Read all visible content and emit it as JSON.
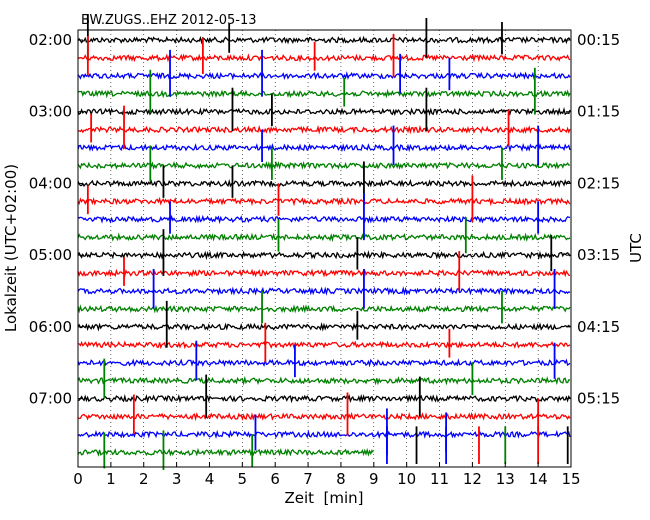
{
  "chart_data": {
    "type": "line",
    "title": "BW.ZUGS..EHZ 2012-05-13",
    "xlabel": "Zeit  [min]",
    "ylabel_left": "Lokalzeit (UTC+02:00)",
    "ylabel_right": "UTC",
    "xlim": [
      0,
      15
    ],
    "x_ticks": [
      "0",
      "1",
      "2",
      "3",
      "4",
      "5",
      "6",
      "7",
      "8",
      "9",
      "10",
      "11",
      "12",
      "13",
      "14",
      "15"
    ],
    "grid": "vertical dotted",
    "y_ticks_left": [
      "02:00",
      "03:00",
      "04:00",
      "05:00",
      "06:00",
      "07:00"
    ],
    "y_ticks_right": [
      "00:15",
      "01:15",
      "02:15",
      "03:15",
      "04:15",
      "05:15"
    ],
    "trace_colors": [
      "#000000",
      "#ff0000",
      "#0000ff",
      "#008000"
    ],
    "traces_count": 24,
    "last_trace_end_min": 9.0,
    "spikes": [
      {
        "trace": 0,
        "x": 0.3,
        "amp": 1.0
      },
      {
        "trace": 0,
        "x": 4.6,
        "amp": 0.5
      },
      {
        "trace": 0,
        "x": 10.6,
        "amp": 0.8
      },
      {
        "trace": 0,
        "x": 12.9,
        "amp": 0.6
      },
      {
        "trace": 1,
        "x": 0.3,
        "amp": 0.8
      },
      {
        "trace": 1,
        "x": 3.8,
        "amp": 0.7
      },
      {
        "trace": 1,
        "x": 7.2,
        "amp": 0.5
      },
      {
        "trace": 1,
        "x": 9.6,
        "amp": 0.9
      },
      {
        "trace": 2,
        "x": 2.8,
        "amp": 1.0
      },
      {
        "trace": 2,
        "x": 5.6,
        "amp": 1.0
      },
      {
        "trace": 2,
        "x": 9.8,
        "amp": 0.8
      },
      {
        "trace": 2,
        "x": 11.3,
        "amp": 0.6
      },
      {
        "trace": 3,
        "x": 2.2,
        "amp": 0.9
      },
      {
        "trace": 3,
        "x": 8.1,
        "amp": 0.5
      },
      {
        "trace": 3,
        "x": 13.9,
        "amp": 1.0
      },
      {
        "trace": 4,
        "x": 4.7,
        "amp": 0.9
      },
      {
        "trace": 4,
        "x": 5.9,
        "amp": 0.6
      },
      {
        "trace": 4,
        "x": 10.6,
        "amp": 0.9
      },
      {
        "trace": 5,
        "x": 0.4,
        "amp": 0.5
      },
      {
        "trace": 5,
        "x": 1.4,
        "amp": 0.9
      },
      {
        "trace": 5,
        "x": 13.1,
        "amp": 0.7
      },
      {
        "trace": 6,
        "x": 5.6,
        "amp": 0.6
      },
      {
        "trace": 6,
        "x": 9.6,
        "amp": 0.8
      },
      {
        "trace": 6,
        "x": 14.0,
        "amp": 0.8
      },
      {
        "trace": 7,
        "x": 2.2,
        "amp": 0.7
      },
      {
        "trace": 7,
        "x": 5.9,
        "amp": 0.6
      },
      {
        "trace": 7,
        "x": 12.9,
        "amp": 0.6
      },
      {
        "trace": 8,
        "x": 2.6,
        "amp": 0.6
      },
      {
        "trace": 8,
        "x": 4.7,
        "amp": 0.6
      },
      {
        "trace": 8,
        "x": 8.7,
        "amp": 0.8
      },
      {
        "trace": 9,
        "x": 0.3,
        "amp": 0.5
      },
      {
        "trace": 9,
        "x": 6.1,
        "amp": 0.6
      },
      {
        "trace": 9,
        "x": 12.0,
        "amp": 1.0
      },
      {
        "trace": 10,
        "x": 2.8,
        "amp": 0.6
      },
      {
        "trace": 10,
        "x": 8.7,
        "amp": 1.0
      },
      {
        "trace": 10,
        "x": 14.0,
        "amp": 0.6
      },
      {
        "trace": 11,
        "x": 6.1,
        "amp": 0.6
      },
      {
        "trace": 11,
        "x": 11.8,
        "amp": 0.7
      },
      {
        "trace": 12,
        "x": 2.6,
        "amp": 1.0
      },
      {
        "trace": 12,
        "x": 8.5,
        "amp": 0.6
      },
      {
        "trace": 12,
        "x": 14.4,
        "amp": 0.7
      },
      {
        "trace": 13,
        "x": 1.4,
        "amp": 0.5
      },
      {
        "trace": 13,
        "x": 11.6,
        "amp": 0.8
      },
      {
        "trace": 14,
        "x": 2.3,
        "amp": 0.8
      },
      {
        "trace": 14,
        "x": 8.7,
        "amp": 0.8
      },
      {
        "trace": 14,
        "x": 14.5,
        "amp": 0.8
      },
      {
        "trace": 15,
        "x": 5.6,
        "amp": 0.6
      },
      {
        "trace": 15,
        "x": 12.9,
        "amp": 0.6
      },
      {
        "trace": 16,
        "x": 2.7,
        "amp": 1.0
      },
      {
        "trace": 16,
        "x": 8.5,
        "amp": 0.5
      },
      {
        "trace": 17,
        "x": 5.7,
        "amp": 0.8
      },
      {
        "trace": 17,
        "x": 11.3,
        "amp": 0.5
      },
      {
        "trace": 18,
        "x": 3.6,
        "amp": 0.8
      },
      {
        "trace": 18,
        "x": 6.6,
        "amp": 0.6
      },
      {
        "trace": 18,
        "x": 14.5,
        "amp": 0.7
      },
      {
        "trace": 19,
        "x": 0.8,
        "amp": 0.8
      },
      {
        "trace": 19,
        "x": 12.0,
        "amp": 0.6
      },
      {
        "trace": 20,
        "x": 3.9,
        "amp": 0.9
      },
      {
        "trace": 20,
        "x": 10.4,
        "amp": 0.8
      },
      {
        "trace": 21,
        "x": 1.7,
        "amp": 0.8
      },
      {
        "trace": 21,
        "x": 8.2,
        "amp": 0.9
      },
      {
        "trace": 21,
        "x": 14.0,
        "amp": 0.6
      },
      {
        "trace": 22,
        "x": 5.4,
        "amp": 0.7
      },
      {
        "trace": 22,
        "x": 9.4,
        "amp": 1.0
      },
      {
        "trace": 22,
        "x": 11.2,
        "amp": 0.8
      },
      {
        "trace": 23,
        "x": 2.6,
        "amp": 0.8
      },
      {
        "trace": 23,
        "x": 5.3,
        "amp": 0.6
      },
      {
        "trace": 23,
        "x": 0.8,
        "amp": 0.7
      }
    ],
    "tail_spikes": [
      {
        "x": 9.4,
        "color": "#0000ff"
      },
      {
        "x": 10.3,
        "color": "#000000"
      },
      {
        "x": 11.2,
        "color": "#0000ff"
      },
      {
        "x": 12.2,
        "color": "#ff0000"
      },
      {
        "x": 13.0,
        "color": "#008000"
      },
      {
        "x": 14.0,
        "color": "#ff0000"
      },
      {
        "x": 14.9,
        "color": "#000000"
      }
    ]
  }
}
